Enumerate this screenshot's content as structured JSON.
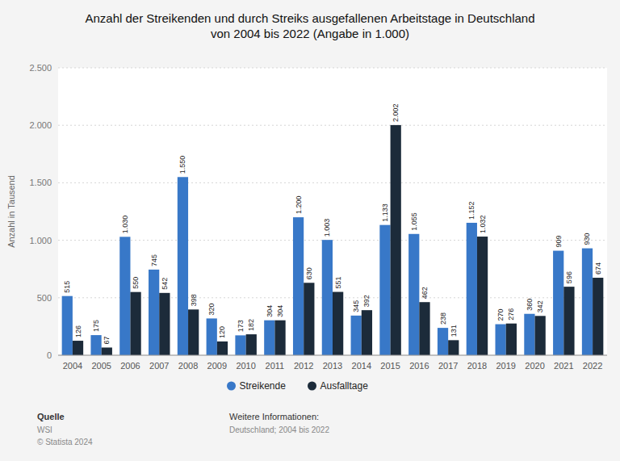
{
  "chart_data": {
    "type": "bar",
    "title": "Anzahl der Streikenden und durch Streiks ausgefallenen Arbeitstage in Deutschland\nvon 2004 bis 2022 (Angabe in 1.000)",
    "categories": [
      "2004",
      "2005",
      "2006",
      "2007",
      "2008",
      "2009",
      "2010",
      "2011",
      "2012",
      "2013",
      "2014",
      "2015",
      "2016",
      "2017",
      "2018",
      "2019",
      "2020",
      "2021",
      "2022"
    ],
    "series": [
      {
        "name": "Streikende",
        "color": "#3878c8",
        "values": [
          515,
          175,
          1030,
          745,
          1550,
          320,
          173,
          304,
          1200,
          1003,
          345,
          1133,
          1055,
          238,
          1152,
          270,
          360,
          909,
          930
        ],
        "value_labels": [
          "515",
          "175",
          "1.030",
          "745",
          "1.550",
          "320",
          "173",
          "304",
          "1.200",
          "1.003",
          "345",
          "1.133",
          "1.055",
          "238",
          "1.152",
          "270",
          "360",
          "909",
          "930"
        ]
      },
      {
        "name": "Ausfalltage",
        "color": "#1c2b3a",
        "values": [
          126,
          67,
          550,
          542,
          398,
          120,
          182,
          304,
          630,
          551,
          392,
          2002,
          462,
          131,
          1032,
          276,
          342,
          596,
          674
        ],
        "value_labels": [
          "126",
          "67",
          "550",
          "542",
          "398",
          "120",
          "182",
          "304",
          "630",
          "551",
          "392",
          "2.002",
          "462",
          "131",
          "1.032",
          "276",
          "342",
          "596",
          "674"
        ]
      }
    ],
    "y_label": "Anzahl in Tausend",
    "ylim": [
      0,
      2500
    ],
    "yticks": [
      0,
      500,
      {
        "value": 1000,
        "label": "1.000"
      },
      {
        "value": 1500,
        "label": "1.500"
      },
      {
        "value": 2000,
        "label": "2.000"
      },
      {
        "value": 2500,
        "label": "2.500"
      }
    ],
    "grid": true,
    "legend": "bottom",
    "data_labels": true,
    "annotations": [
      "Quelle",
      "WSI",
      "© Statista 2024",
      "Weitere Informationen:",
      "Deutschland; 2004 bis 2022"
    ]
  }
}
